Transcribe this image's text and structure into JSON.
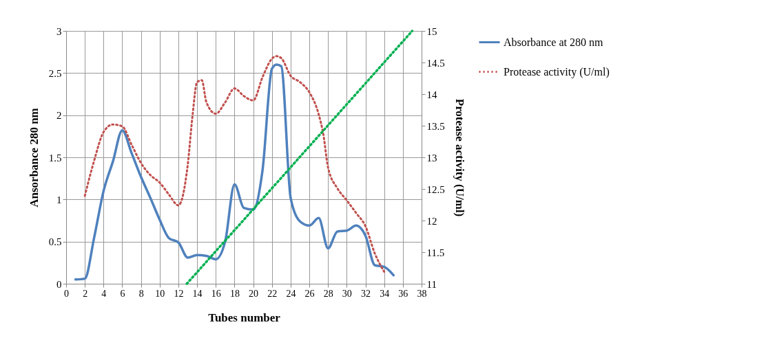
{
  "chart_data": {
    "type": "line",
    "xlabel": "Tubes number",
    "ylabel": "Ansorbance 280 nm",
    "y2label": "Protease activity (U/ml)",
    "xlim": [
      0,
      38
    ],
    "xticks": [
      0,
      2,
      4,
      6,
      8,
      10,
      12,
      14,
      16,
      18,
      20,
      22,
      24,
      26,
      28,
      30,
      32,
      34,
      36,
      38
    ],
    "ylim": [
      0,
      3
    ],
    "yticks": [
      0,
      0.5,
      1,
      1.5,
      2,
      2.5,
      3
    ],
    "y2lim": [
      11,
      15
    ],
    "y2ticks": [
      11,
      11.5,
      12,
      12.5,
      13,
      13.5,
      14,
      14.5,
      15
    ],
    "grid": true,
    "legend": "right",
    "series": [
      {
        "name": "Absorbance at 280 nm",
        "color": "#4f81bd",
        "line_style": "solid",
        "x": [
          1,
          2,
          3,
          4,
          5,
          6,
          7,
          8,
          9,
          10,
          11,
          12,
          13,
          14,
          15,
          16,
          17,
          18,
          19,
          20,
          21,
          22,
          22.5,
          23,
          24,
          25,
          26,
          27,
          28,
          29,
          30,
          31,
          32,
          33,
          34,
          35
        ],
        "values": [
          0.05,
          0.06,
          0.55,
          1.1,
          1.45,
          1.82,
          1.55,
          1.27,
          1.02,
          0.76,
          0.54,
          0.49,
          0.31,
          0.34,
          0.33,
          0.29,
          0.5,
          1.18,
          0.9,
          0.88,
          1.35,
          2.55,
          2.6,
          2.58,
          1.02,
          0.74,
          0.69,
          0.78,
          0.42,
          0.62,
          0.63,
          0.69,
          0.57,
          0.22,
          0.2,
          0.1
        ]
      },
      {
        "name": "Protease activity (U/ml)",
        "color": "#c0504d",
        "line_style": "dotted",
        "axis": "y2",
        "x": [
          2,
          3,
          4,
          5,
          6,
          7,
          8,
          9,
          10,
          11,
          12,
          13,
          13.5,
          14,
          14.5,
          15,
          16,
          17,
          18,
          19,
          20,
          21,
          22,
          22.5,
          23,
          24,
          25,
          26,
          27,
          27.5,
          28,
          29,
          30,
          31,
          32,
          33,
          34
        ],
        "values": [
          12.39,
          12.95,
          13.4,
          13.52,
          13.49,
          13.2,
          12.91,
          12.72,
          12.6,
          12.41,
          12.24,
          12.88,
          13.64,
          14.19,
          14.22,
          13.87,
          13.69,
          13.87,
          14.09,
          13.97,
          13.9,
          14.27,
          14.56,
          14.6,
          14.57,
          14.29,
          14.19,
          14.03,
          13.68,
          13.36,
          12.84,
          12.51,
          12.32,
          12.12,
          11.91,
          11.48,
          11.19
        ]
      },
      {
        "color": "#00b050",
        "line_style": "dotted",
        "axis": "y2",
        "x": [
          12.9,
          37
        ],
        "values": [
          11,
          15
        ]
      }
    ]
  }
}
